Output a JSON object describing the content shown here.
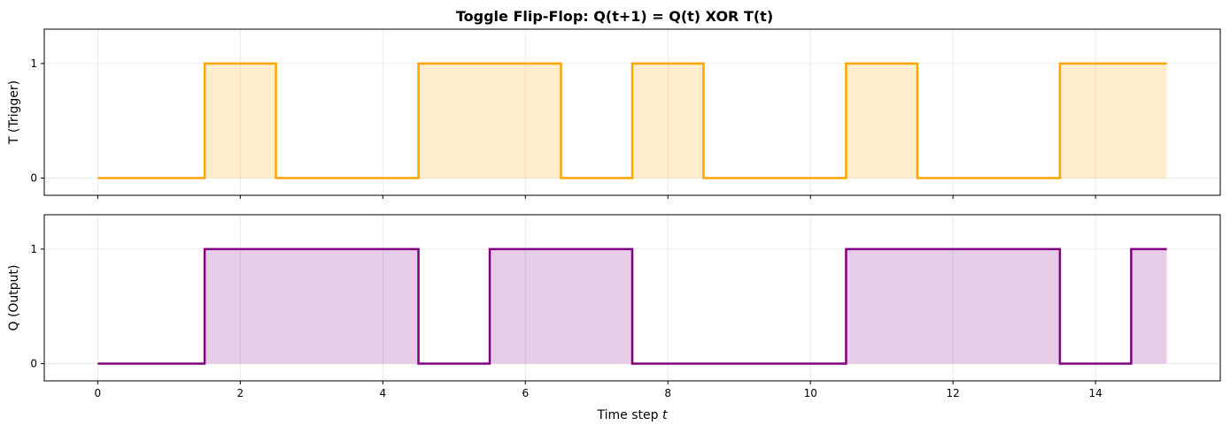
{
  "chart_data": {
    "title": "Toggle Flip-Flop: Q(t+1) = Q(t) XOR T(t)",
    "xlabel_text": "Time step ",
    "xlabel_var": "t",
    "x_ticks": [
      0,
      2,
      4,
      6,
      8,
      10,
      12,
      14
    ],
    "xlim": [
      -0.75,
      15.75
    ],
    "panels": [
      {
        "type": "area",
        "step": "mid",
        "ylabel": "T (Trigger)",
        "x": [
          0,
          1,
          2,
          3,
          4,
          5,
          6,
          7,
          8,
          9,
          10,
          11,
          12,
          13,
          14,
          15
        ],
        "values": [
          0,
          0,
          1,
          0,
          0,
          1,
          1,
          0,
          1,
          0,
          0,
          1,
          0,
          0,
          1,
          1
        ],
        "y_ticks": [
          0,
          1
        ],
        "ylim": [
          -0.15,
          1.3
        ],
        "line_color": "#ffa500",
        "fill_color": "#ffa500",
        "fill_opacity": 0.2
      },
      {
        "type": "area",
        "step": "mid",
        "ylabel": "Q (Output)",
        "x": [
          0,
          1,
          2,
          3,
          4,
          5,
          6,
          7,
          8,
          9,
          10,
          11,
          12,
          13,
          14,
          15
        ],
        "values": [
          0,
          0,
          1,
          1,
          1,
          0,
          1,
          1,
          0,
          0,
          0,
          1,
          1,
          1,
          0,
          1
        ],
        "y_ticks": [
          0,
          1
        ],
        "ylim": [
          -0.15,
          1.3
        ],
        "line_color": "#800080",
        "fill_color": "#800080",
        "fill_opacity": 0.2
      }
    ],
    "grid": true
  }
}
